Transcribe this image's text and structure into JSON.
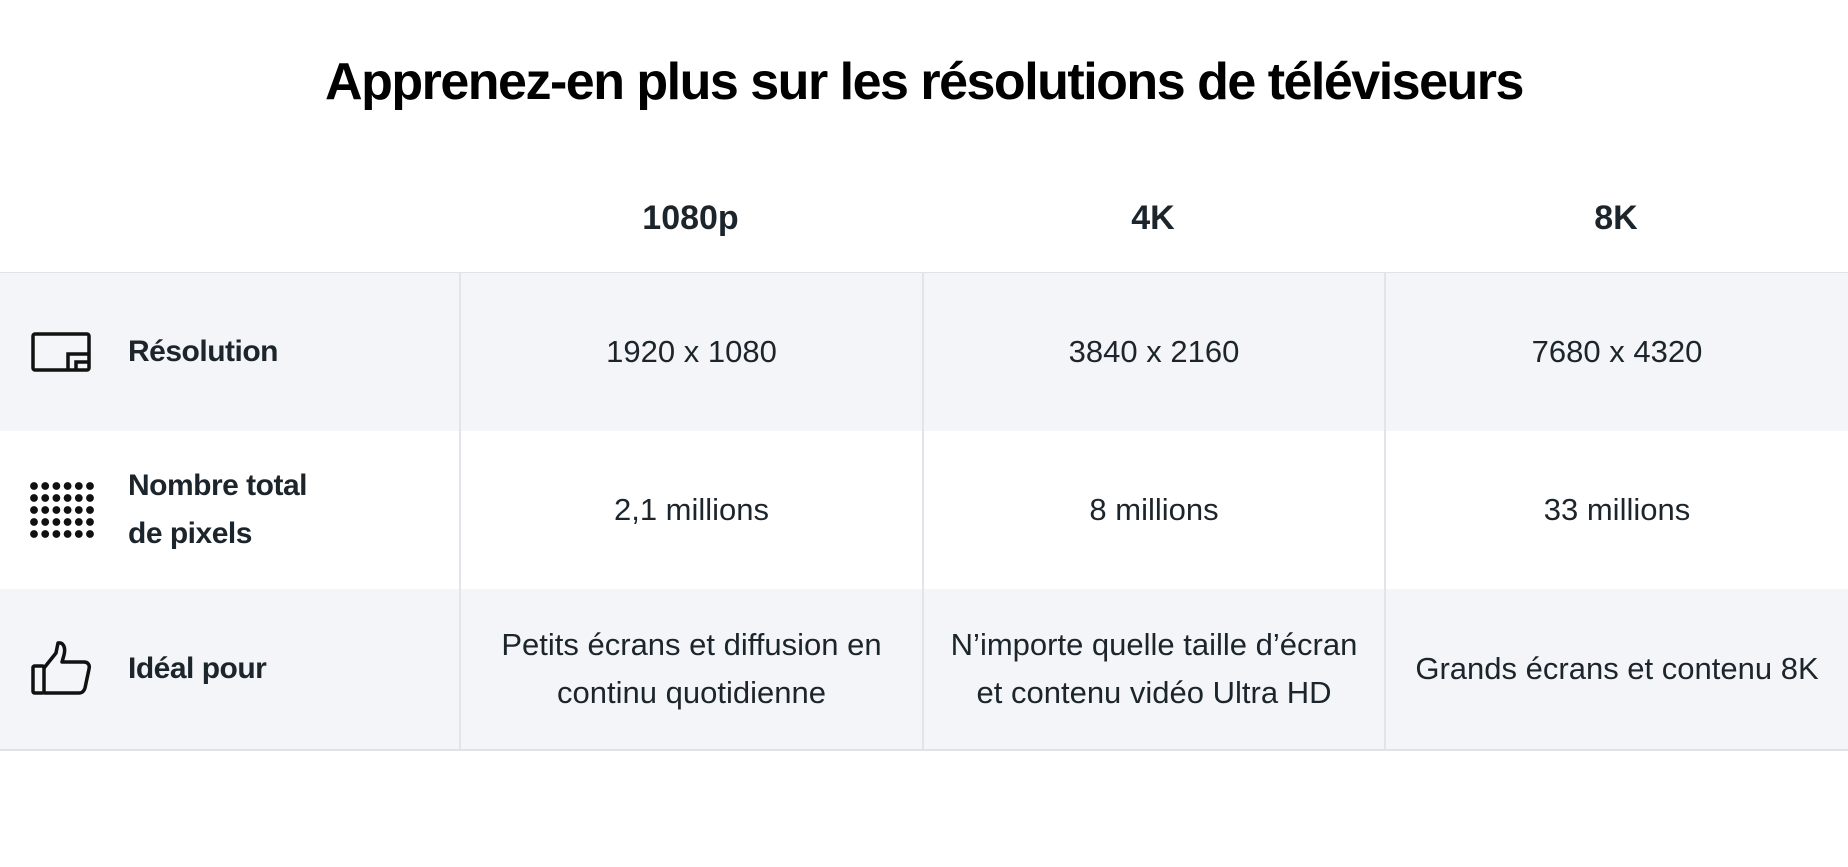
{
  "title": "Apprenez-en plus sur les résolutions de téléviseurs",
  "columns": [
    "1080p",
    "4K",
    "8K"
  ],
  "rows": [
    {
      "icon": "screen-resolution-icon",
      "label": "Résolution",
      "values": [
        "1920 x 1080",
        "3840 x 2160",
        "7680 x 4320"
      ]
    },
    {
      "icon": "pixel-grid-icon",
      "label": "Nombre total de pixels",
      "values": [
        "2,1 millions",
        "8 millions",
        "33 millions"
      ]
    },
    {
      "icon": "thumbs-up-icon",
      "label": "Idéal pour",
      "values": [
        "Petits écrans et diffusion en continu quotidienne",
        "N’importe quelle taille d’écran et contenu vidéo Ultra HD",
        "Grands écrans et contenu 8K"
      ]
    }
  ],
  "colors": {
    "text": "#1d252c",
    "title": "#000000",
    "shaded_row": "#f3f5f8",
    "divider": "#e1e5ea"
  }
}
